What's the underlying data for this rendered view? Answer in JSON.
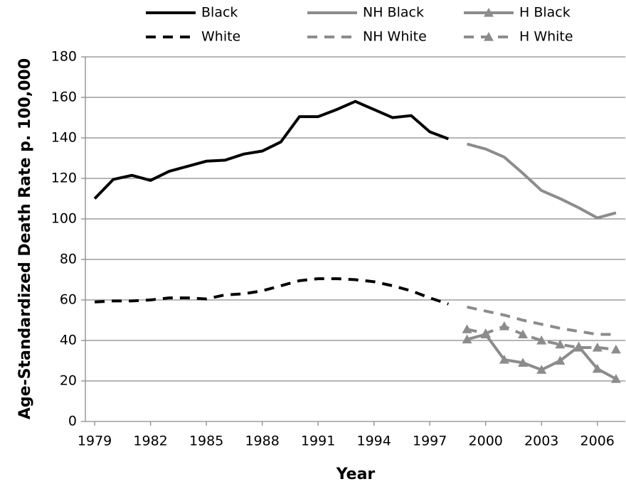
{
  "chart_data": {
    "type": "line",
    "xlabel": "Year",
    "ylabel": "Age-Standardized Death Rate p. 100,000",
    "x": [
      1979,
      1980,
      1981,
      1982,
      1983,
      1984,
      1985,
      1986,
      1987,
      1988,
      1989,
      1990,
      1991,
      1992,
      1993,
      1994,
      1995,
      1996,
      1997,
      1998,
      1999,
      2000,
      2001,
      2002,
      2003,
      2004,
      2005,
      2006,
      2007
    ],
    "xlim": [
      1978.5,
      2007.5
    ],
    "xticks": [
      1979,
      1982,
      1985,
      1988,
      1991,
      1994,
      1997,
      2000,
      2003,
      2006
    ],
    "ylim": [
      0,
      180
    ],
    "yticks": [
      0,
      20,
      40,
      60,
      80,
      100,
      120,
      140,
      160,
      180
    ],
    "grid": true,
    "legend": "top",
    "series": [
      {
        "name": "Black",
        "color": "#000000",
        "dash": false,
        "marker": "none",
        "values": [
          110,
          119.5,
          121.5,
          119,
          123.5,
          126,
          128.5,
          129,
          132,
          133.5,
          138,
          150.5,
          150.5,
          154,
          158,
          154,
          150,
          151,
          143,
          139.5,
          null,
          null,
          null,
          null,
          null,
          null,
          null,
          null,
          null
        ]
      },
      {
        "name": "NH Black",
        "color": "#8c8c8c",
        "dash": false,
        "marker": "none",
        "values": [
          null,
          null,
          null,
          null,
          null,
          null,
          null,
          null,
          null,
          null,
          null,
          null,
          null,
          null,
          null,
          null,
          null,
          null,
          null,
          null,
          137,
          134.5,
          130.5,
          122.5,
          114,
          110,
          105.5,
          100.5,
          103
        ]
      },
      {
        "name": "H Black",
        "color": "#8c8c8c",
        "dash": false,
        "marker": "triangle",
        "values": [
          null,
          null,
          null,
          null,
          null,
          null,
          null,
          null,
          null,
          null,
          null,
          null,
          null,
          null,
          null,
          null,
          null,
          null,
          null,
          null,
          40.5,
          43,
          30.5,
          29,
          25.5,
          30,
          37,
          26,
          21
        ]
      },
      {
        "name": "White",
        "color": "#000000",
        "dash": true,
        "marker": "none",
        "values": [
          59,
          59.5,
          59.5,
          60,
          61,
          61,
          60.5,
          62.5,
          63,
          64.5,
          67,
          69.5,
          70.5,
          70.5,
          70,
          69,
          67,
          64.5,
          61,
          58,
          null,
          null,
          null,
          null,
          null,
          null,
          null,
          null,
          null
        ]
      },
      {
        "name": "NH White",
        "color": "#8c8c8c",
        "dash": true,
        "marker": "none",
        "values": [
          null,
          null,
          null,
          null,
          null,
          null,
          null,
          null,
          null,
          null,
          null,
          null,
          null,
          null,
          null,
          null,
          null,
          null,
          null,
          null,
          56.5,
          54.5,
          52.5,
          50,
          48,
          46,
          44.5,
          43,
          43
        ]
      },
      {
        "name": "H White",
        "color": "#8c8c8c",
        "dash": true,
        "marker": "triangle",
        "values": [
          null,
          null,
          null,
          null,
          null,
          null,
          null,
          null,
          null,
          null,
          null,
          null,
          null,
          null,
          null,
          null,
          null,
          null,
          null,
          null,
          45.5,
          43.5,
          47,
          43,
          40,
          38,
          36.5,
          36.5,
          35.5
        ]
      }
    ]
  }
}
